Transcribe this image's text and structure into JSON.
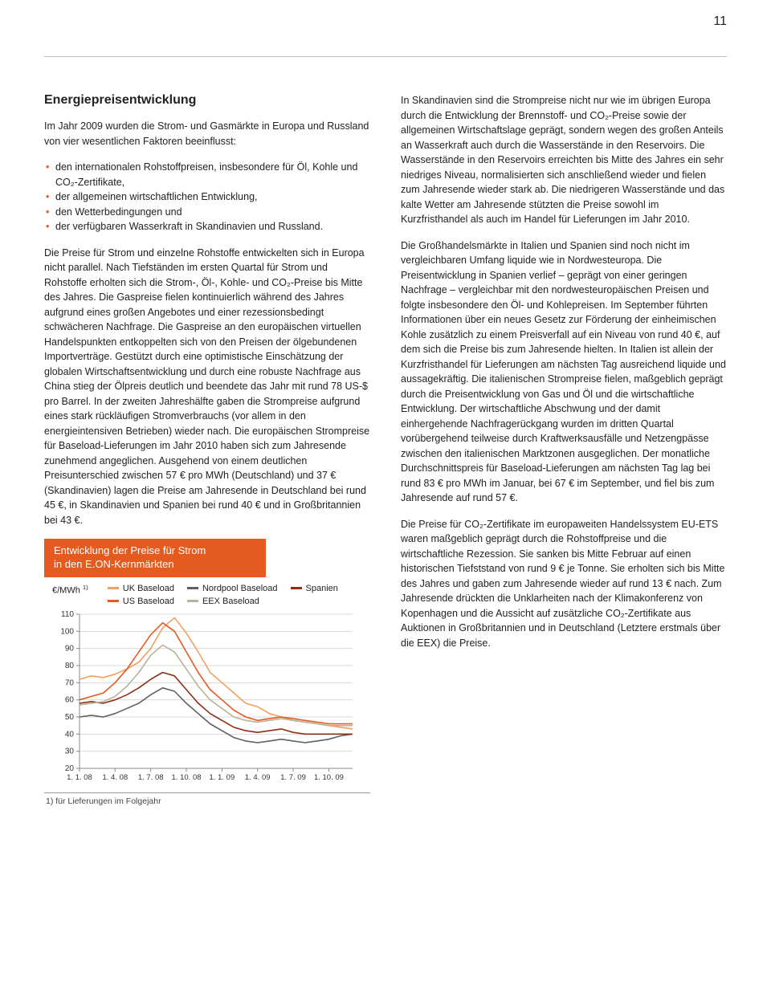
{
  "page_number": "11",
  "left": {
    "heading": "Energiepreisentwicklung",
    "p1": "Im Jahr 2009 wurden die Strom- und Gasmärkte in Europa und Russland von vier wesentlichen Faktoren beeinflusst:",
    "bullets": [
      "den internationalen Rohstoffpreisen, insbesondere für Öl, Kohle und CO₂-Zertifikate,",
      "der allgemeinen wirtschaftlichen Entwicklung,",
      "den Wetterbedingungen und",
      "der verfügbaren Wasserkraft in Skandinavien und Russland."
    ],
    "p2": "Die Preise für Strom und einzelne Rohstoffe entwickelten sich in Europa nicht parallel. Nach Tiefständen im ersten Quartal für Strom und Rohstoffe erholten sich die Strom-, Öl-, Kohle- und CO₂-Preise bis Mitte des Jahres. Die Gaspreise fielen kontinuierlich während des Jahres aufgrund eines großen Angebotes und einer rezessionsbedingt schwächeren Nachfrage. Die Gaspreise an den europäischen virtuellen Handelspunkten entkoppelten sich von den Preisen der ölgebundenen Importverträge. Gestützt durch eine optimistische Einschätzung der globalen Wirtschaftsentwicklung und durch eine robuste Nachfrage aus China stieg der Ölpreis deutlich und beendete das Jahr mit rund 78 US-$ pro Barrel. In der zweiten Jahreshälfte gaben die Strompreise aufgrund eines stark rückläufigen Stromverbrauchs (vor allem in den energieintensiven Betrieben) wieder nach. Die europäischen Strompreise für Baseload-Lieferungen im Jahr 2010 haben sich zum Jahresende zunehmend angeglichen. Ausgehend von einem deutlichen Preisunterschied zwischen 57 € pro MWh (Deutschland) und 37 € (Skandinavien) lagen die Preise am Jahresende in Deutschland bei rund 45 €, in Skandinavien und Spanien bei rund 40 € und in Großbritannien bei 43 €."
  },
  "right": {
    "p1": "In Skandinavien sind die Strompreise nicht nur wie im übrigen Europa durch die Entwicklung der Brennstoff- und CO₂-Preise sowie der allgemeinen Wirtschaftslage geprägt, sondern wegen des großen Anteils an Wasserkraft auch durch die Wasserstände in den Reservoirs. Die Wasserstände in den Reservoirs erreichten bis Mitte des Jahres ein sehr niedriges Niveau, normalisierten sich anschließend wieder und fielen zum Jahresende wieder stark ab. Die niedrigeren Wasserstände und das kalte Wetter am Jahresende stützten die Preise sowohl im Kurzfristhandel als auch im Handel für Lieferungen im Jahr 2010.",
    "p2": "Die Großhandelsmärkte in Italien und Spanien sind noch nicht im vergleichbaren Umfang liquide wie in Nordwesteuropa. Die Preisentwicklung in Spanien verlief – geprägt von einer geringen Nachfrage – vergleichbar mit den nordwesteuropäischen Preisen und folgte insbesondere den Öl- und Kohlepreisen. Im September führten Informationen über ein neues Gesetz zur Förderung der einheimischen Kohle zusätzlich zu einem Preisverfall auf ein Niveau von rund 40 €, auf dem sich die Preise bis zum Jahresende hielten. In Italien ist allein der Kurzfristhandel für Lieferungen am nächsten Tag ausreichend liquide und aussagekräftig. Die italienischen Strompreise fielen, maßgeblich geprägt durch die Preisentwicklung von Gas und Öl und die wirtschaftliche Entwicklung. Der wirtschaftliche Abschwung und der damit einhergehende Nachfragerückgang wurden im dritten Quartal vorübergehend teilweise durch Kraftwerksausfälle und Netzengpässe zwischen den italienischen Marktzonen ausgeglichen. Der monatliche Durchschnittspreis für Baseload-Lieferungen am nächsten Tag lag bei rund 83 € pro MWh im Januar, bei 67 € im September, und fiel bis zum Jahresende auf rund 57 €.",
    "p3": "Die Preise für CO₂-Zertifikate im europaweiten Handelssystem EU-ETS waren maßgeblich geprägt durch die Rohstoffpreise und die wirtschaftliche Rezession. Sie sanken bis Mitte Februar auf einen historischen Tiefststand von rund 9 € je Tonne. Sie erholten sich bis Mitte des Jahres und gaben zum Jahresende wieder auf rund 13 € nach. Zum Jahresende drückten die Unklarheiten nach der Klimakonferenz von Kopenhagen und die Aussicht auf zusätzliche CO₂-Zertifikate aus Auktionen in Großbritannien und in Deutschland (Letztere erstmals über die EEX) die Preise."
  },
  "chart": {
    "title_line1": "Entwicklung der Preise für Strom",
    "title_line2": "in den E.ON-Kernmärkten",
    "y_unit_html": "€/MWh <sup>1)</sup>",
    "footnote": "1) für Lieferungen im Folgejahr",
    "ylim": [
      20,
      110
    ],
    "ytick_step": 10,
    "yticks": [
      110,
      100,
      90,
      80,
      70,
      60,
      50,
      40,
      30,
      20
    ],
    "xlabels": [
      "1. 1. 08",
      "1. 4. 08",
      "1. 7. 08",
      "1. 10. 08",
      "1. 1. 09",
      "1. 4. 09",
      "1. 7. 09",
      "1. 10. 09"
    ],
    "plot_bg": "#ffffff",
    "grid_color": "#d9d9d9",
    "axis_color": "#888888",
    "tick_font_size": 10,
    "series": [
      {
        "name": "UK Baseload",
        "color": "#f0a060",
        "values": [
          72,
          74,
          73,
          75,
          78,
          82,
          90,
          102,
          108,
          99,
          88,
          76,
          70,
          64,
          58,
          56,
          52,
          50,
          48,
          47,
          46,
          45,
          44,
          43
        ]
      },
      {
        "name": "Nordpool Baseload",
        "color": "#60605f",
        "values": [
          50,
          51,
          50,
          52,
          55,
          58,
          63,
          67,
          65,
          58,
          52,
          46,
          42,
          38,
          36,
          35,
          36,
          37,
          36,
          35,
          36,
          37,
          39,
          40
        ]
      },
      {
        "name": "Spanien",
        "color": "#8e2f14",
        "values": [
          58,
          59,
          58,
          60,
          63,
          67,
          72,
          76,
          74,
          66,
          58,
          52,
          48,
          44,
          42,
          41,
          42,
          43,
          41,
          40,
          40,
          40,
          40,
          40
        ]
      },
      {
        "name": "US Baseload",
        "color": "#e45a1f",
        "values": [
          60,
          62,
          64,
          70,
          78,
          88,
          98,
          105,
          100,
          88,
          76,
          66,
          60,
          54,
          50,
          48,
          49,
          50,
          49,
          48,
          47,
          46,
          46,
          46
        ]
      },
      {
        "name": "EEX Baseload",
        "color": "#b7b39a",
        "values": [
          57,
          58,
          59,
          62,
          68,
          76,
          86,
          92,
          88,
          78,
          68,
          60,
          55,
          50,
          48,
          47,
          48,
          49,
          48,
          47,
          46,
          45,
          45,
          45
        ]
      }
    ],
    "legend_order": [
      [
        "UK Baseload",
        "Nordpool Baseload",
        "Spanien"
      ],
      [
        "US Baseload",
        "EEX Baseload"
      ]
    ]
  }
}
